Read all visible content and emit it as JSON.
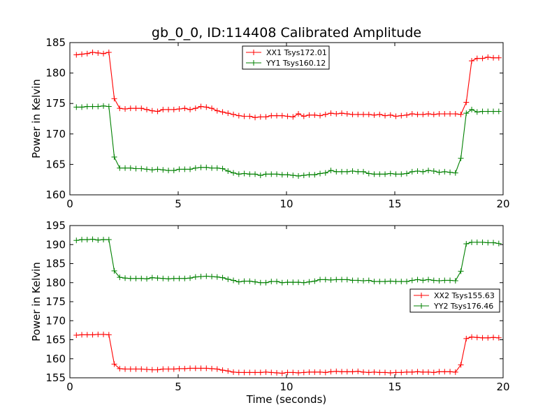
{
  "chart_data": {
    "type": "line",
    "title": "gb_0_0, ID:114408 Calibrated Amplitude",
    "subplots": [
      {
        "xlabel": "",
        "ylabel": "Power in Kelvin",
        "xlim": [
          0,
          20
        ],
        "ylim": [
          160,
          185
        ],
        "xticks": [
          0,
          5,
          10,
          15,
          20
        ],
        "yticks": [
          160,
          165,
          170,
          175,
          180,
          185
        ],
        "grid": false,
        "legend_position": "top-center",
        "series": [
          {
            "name": "XX1 Tsys172.01",
            "color": "#ff0000",
            "marker": "plus",
            "x": [
              0.3,
              0.55,
              0.8,
              1.05,
              1.3,
              1.55,
              1.8,
              2.05,
              2.3,
              2.55,
              2.8,
              3.05,
              3.3,
              3.55,
              3.8,
              4.05,
              4.3,
              4.55,
              4.8,
              5.05,
              5.3,
              5.55,
              5.8,
              6.05,
              6.3,
              6.55,
              6.8,
              7.05,
              7.3,
              7.55,
              7.8,
              8.05,
              8.3,
              8.55,
              8.8,
              9.05,
              9.3,
              9.55,
              9.8,
              10.05,
              10.3,
              10.55,
              10.8,
              11.05,
              11.3,
              11.55,
              11.8,
              12.05,
              12.3,
              12.55,
              12.8,
              13.05,
              13.3,
              13.55,
              13.8,
              14.05,
              14.3,
              14.55,
              14.8,
              15.05,
              15.3,
              15.55,
              15.8,
              16.05,
              16.3,
              16.55,
              16.8,
              17.05,
              17.3,
              17.55,
              17.8,
              18.05,
              18.3,
              18.55,
              18.8,
              19.05,
              19.3,
              19.55,
              19.8
            ],
            "y": [
              183.0,
              183.1,
              183.2,
              183.4,
              183.3,
              183.2,
              183.4,
              175.8,
              174.2,
              174.1,
              174.2,
              174.2,
              174.2,
              174.0,
              173.8,
              173.7,
              174.0,
              174.0,
              174.0,
              174.1,
              174.2,
              174.0,
              174.2,
              174.5,
              174.4,
              174.2,
              173.8,
              173.6,
              173.4,
              173.2,
              173.0,
              172.9,
              172.9,
              172.7,
              172.8,
              172.8,
              173.0,
              173.0,
              173.0,
              172.9,
              172.8,
              173.3,
              172.9,
              173.1,
              173.1,
              173.0,
              173.2,
              173.4,
              173.3,
              173.4,
              173.3,
              173.2,
              173.2,
              173.2,
              173.2,
              173.1,
              173.2,
              173.0,
              173.1,
              172.9,
              173.0,
              173.1,
              173.3,
              173.2,
              173.2,
              173.3,
              173.2,
              173.3,
              173.3,
              173.3,
              173.3,
              173.2,
              175.2,
              182.0,
              182.4,
              182.4,
              182.6,
              182.5,
              182.5
            ]
          },
          {
            "name": "YY1 Tsys160.12",
            "color": "#008000",
            "marker": "plus",
            "x": [
              0.3,
              0.55,
              0.8,
              1.05,
              1.3,
              1.55,
              1.8,
              2.05,
              2.3,
              2.55,
              2.8,
              3.05,
              3.3,
              3.55,
              3.8,
              4.05,
              4.3,
              4.55,
              4.8,
              5.05,
              5.3,
              5.55,
              5.8,
              6.05,
              6.3,
              6.55,
              6.8,
              7.05,
              7.3,
              7.55,
              7.8,
              8.05,
              8.3,
              8.55,
              8.8,
              9.05,
              9.3,
              9.55,
              9.8,
              10.05,
              10.3,
              10.55,
              10.8,
              11.05,
              11.3,
              11.55,
              11.8,
              12.05,
              12.3,
              12.55,
              12.8,
              13.05,
              13.3,
              13.55,
              13.8,
              14.05,
              14.3,
              14.55,
              14.8,
              15.05,
              15.3,
              15.55,
              15.8,
              16.05,
              16.3,
              16.55,
              16.8,
              17.05,
              17.3,
              17.55,
              17.8,
              18.05,
              18.3,
              18.55,
              18.8,
              19.05,
              19.3,
              19.55,
              19.8
            ],
            "y": [
              174.4,
              174.4,
              174.5,
              174.5,
              174.5,
              174.6,
              174.5,
              166.2,
              164.4,
              164.4,
              164.4,
              164.3,
              164.3,
              164.2,
              164.1,
              164.2,
              164.1,
              164.0,
              164.0,
              164.2,
              164.2,
              164.2,
              164.4,
              164.5,
              164.5,
              164.4,
              164.4,
              164.3,
              163.9,
              163.6,
              163.4,
              163.5,
              163.4,
              163.4,
              163.2,
              163.4,
              163.4,
              163.4,
              163.3,
              163.3,
              163.2,
              163.1,
              163.2,
              163.3,
              163.3,
              163.5,
              163.6,
              164.0,
              163.8,
              163.8,
              163.8,
              163.9,
              163.8,
              163.8,
              163.5,
              163.4,
              163.4,
              163.4,
              163.5,
              163.4,
              163.4,
              163.5,
              163.8,
              163.9,
              163.8,
              164.0,
              163.9,
              163.7,
              163.8,
              163.7,
              163.6,
              166.0,
              173.4,
              174.0,
              173.6,
              173.7,
              173.7,
              173.7,
              173.7
            ]
          }
        ]
      },
      {
        "xlabel": "Time (seconds)",
        "ylabel": "Power in Kelvin",
        "xlim": [
          0,
          20
        ],
        "ylim": [
          155,
          195
        ],
        "xticks": [
          0,
          5,
          10,
          15,
          20
        ],
        "yticks": [
          155,
          160,
          165,
          170,
          175,
          180,
          185,
          190,
          195
        ],
        "grid": false,
        "legend_position": "right",
        "series": [
          {
            "name": "XX2 Tsys155.63",
            "color": "#ff0000",
            "marker": "plus",
            "x": [
              0.3,
              0.55,
              0.8,
              1.05,
              1.3,
              1.55,
              1.8,
              2.05,
              2.3,
              2.55,
              2.8,
              3.05,
              3.3,
              3.55,
              3.8,
              4.05,
              4.3,
              4.55,
              4.8,
              5.05,
              5.3,
              5.55,
              5.8,
              6.05,
              6.3,
              6.55,
              6.8,
              7.05,
              7.3,
              7.55,
              7.8,
              8.05,
              8.3,
              8.55,
              8.8,
              9.05,
              9.3,
              9.55,
              9.8,
              10.05,
              10.3,
              10.55,
              10.8,
              11.05,
              11.3,
              11.55,
              11.8,
              12.05,
              12.3,
              12.55,
              12.8,
              13.05,
              13.3,
              13.55,
              13.8,
              14.05,
              14.3,
              14.55,
              14.8,
              15.05,
              15.3,
              15.55,
              15.8,
              16.05,
              16.3,
              16.55,
              16.8,
              17.05,
              17.3,
              17.55,
              17.8,
              18.05,
              18.3,
              18.55,
              18.8,
              19.05,
              19.3,
              19.55,
              19.8
            ],
            "y": [
              166.2,
              166.3,
              166.3,
              166.3,
              166.4,
              166.4,
              166.3,
              158.6,
              157.4,
              157.3,
              157.3,
              157.3,
              157.3,
              157.2,
              157.1,
              157.1,
              157.3,
              157.3,
              157.3,
              157.4,
              157.4,
              157.5,
              157.5,
              157.5,
              157.5,
              157.4,
              157.3,
              157.0,
              156.8,
              156.5,
              156.4,
              156.4,
              156.4,
              156.4,
              156.4,
              156.5,
              156.4,
              156.3,
              156.2,
              156.4,
              156.4,
              156.3,
              156.4,
              156.5,
              156.5,
              156.5,
              156.4,
              156.6,
              156.7,
              156.6,
              156.6,
              156.6,
              156.7,
              156.5,
              156.4,
              156.5,
              156.4,
              156.4,
              156.3,
              156.4,
              156.4,
              156.5,
              156.5,
              156.6,
              156.5,
              156.5,
              156.4,
              156.6,
              156.6,
              156.6,
              156.5,
              158.4,
              165.3,
              165.7,
              165.6,
              165.5,
              165.5,
              165.6,
              165.5
            ]
          },
          {
            "name": "YY2 Tsys176.46",
            "color": "#008000",
            "marker": "plus",
            "x": [
              0.3,
              0.55,
              0.8,
              1.05,
              1.3,
              1.55,
              1.8,
              2.05,
              2.3,
              2.55,
              2.8,
              3.05,
              3.3,
              3.55,
              3.8,
              4.05,
              4.3,
              4.55,
              4.8,
              5.05,
              5.3,
              5.55,
              5.8,
              6.05,
              6.3,
              6.55,
              6.8,
              7.05,
              7.3,
              7.55,
              7.8,
              8.05,
              8.3,
              8.55,
              8.8,
              9.05,
              9.3,
              9.55,
              9.8,
              10.05,
              10.3,
              10.55,
              10.8,
              11.05,
              11.3,
              11.55,
              11.8,
              12.05,
              12.3,
              12.55,
              12.8,
              13.05,
              13.3,
              13.55,
              13.8,
              14.05,
              14.3,
              14.55,
              14.8,
              15.05,
              15.3,
              15.55,
              15.8,
              16.05,
              16.3,
              16.55,
              16.8,
              17.05,
              17.3,
              17.55,
              17.8,
              18.05,
              18.3,
              18.55,
              18.8,
              19.05,
              19.3,
              19.55,
              19.8
            ],
            "y": [
              191.1,
              191.3,
              191.3,
              191.4,
              191.2,
              191.3,
              191.3,
              183.1,
              181.4,
              181.2,
              181.1,
              181.1,
              181.1,
              181.0,
              181.3,
              181.2,
              181.1,
              181.0,
              181.1,
              181.1,
              181.1,
              181.2,
              181.5,
              181.6,
              181.7,
              181.6,
              181.5,
              181.3,
              180.9,
              180.6,
              180.2,
              180.4,
              180.4,
              180.2,
              180.0,
              180.0,
              180.3,
              180.3,
              180.0,
              180.1,
              180.1,
              180.1,
              180.0,
              180.2,
              180.4,
              180.8,
              180.8,
              180.7,
              180.8,
              180.8,
              180.8,
              180.6,
              180.6,
              180.5,
              180.6,
              180.3,
              180.3,
              180.3,
              180.4,
              180.3,
              180.3,
              180.3,
              180.6,
              180.8,
              180.6,
              180.8,
              180.6,
              180.5,
              180.6,
              180.6,
              180.5,
              183.0,
              190.2,
              190.6,
              190.6,
              190.6,
              190.5,
              190.5,
              190.3
            ]
          }
        ]
      }
    ]
  }
}
